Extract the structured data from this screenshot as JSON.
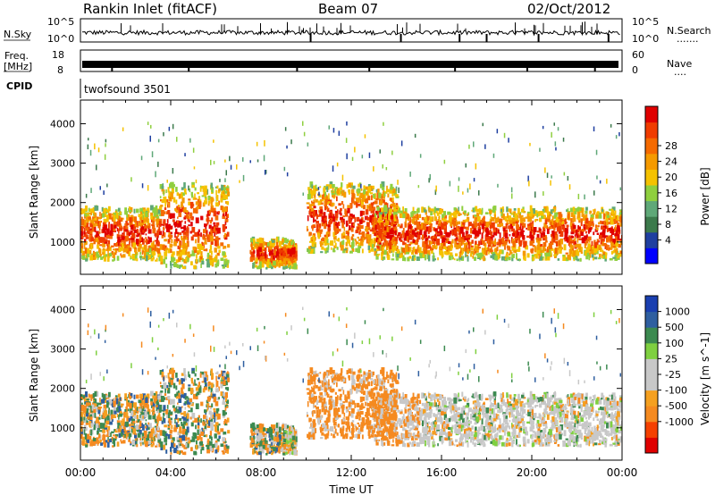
{
  "header": {
    "station": "Rankin Inlet (fitACF)",
    "beam": "Beam 07",
    "date": "02/Oct/2012"
  },
  "noise_panel": {
    "left_label": "N.Sky",
    "right_label": "N.Search",
    "right_label_dots": ".......",
    "left_ticks": [
      "10^5",
      "10^0"
    ],
    "right_ticks": [
      "10^5",
      "10^0"
    ]
  },
  "freq_panel": {
    "label_line1": "Freq.",
    "label_line2": "[MHz]",
    "left_ticks": [
      "18",
      "8"
    ],
    "right_label": "Nave",
    "right_label_dots": "....",
    "right_ticks": [
      "60",
      "0"
    ]
  },
  "cpid_panel": {
    "label": "CPID",
    "program": "twofsound 3501"
  },
  "colors": {
    "power": [
      "#0000ff",
      "#1f3fa0",
      "#3c7a4c",
      "#5fa878",
      "#8fcf3f",
      "#f5c200",
      "#f59a00",
      "#f56a00",
      "#f03c00",
      "#e00000"
    ],
    "velocity": [
      "#e00000",
      "#f54000",
      "#f58a20",
      "#f5a020",
      "#c8c8c8",
      "#c8c8c8",
      "#7fd040",
      "#3c8a50",
      "#2f5fa0",
      "#1a3fb0"
    ]
  },
  "chart_data": [
    {
      "type": "heatmap",
      "name": "power",
      "title": "",
      "xlabel": "",
      "ylabel": "Slant Range [km]",
      "xlim": [
        0,
        24
      ],
      "ylim": [
        180,
        4600
      ],
      "yticks": [
        "1000",
        "2000",
        "3000",
        "4000"
      ],
      "colorbar_label": "Power [dB]",
      "colorbar_ticks": [
        "4",
        "8",
        "12",
        "16",
        "20",
        "24",
        "28"
      ],
      "scatter_echo_bands_hours_km": [
        {
          "x": [
            0,
            3.5
          ],
          "y": [
            500,
            1800
          ]
        },
        {
          "x": [
            3.5,
            6.5
          ],
          "y": [
            300,
            2400
          ]
        },
        {
          "x": [
            7.5,
            9.5
          ],
          "y": [
            300,
            1000
          ]
        },
        {
          "x": [
            10,
            14
          ],
          "y": [
            700,
            2400
          ]
        },
        {
          "x": [
            13,
            24
          ],
          "y": [
            500,
            1800
          ]
        }
      ]
    },
    {
      "type": "heatmap",
      "name": "velocity",
      "title": "",
      "xlabel": "Time UT",
      "ylabel": "Slant Range [km]",
      "xlim": [
        0,
        24
      ],
      "ylim": [
        180,
        4600
      ],
      "xticks": [
        "00:00",
        "04:00",
        "08:00",
        "12:00",
        "16:00",
        "20:00",
        "00:00"
      ],
      "yticks": [
        "1000",
        "2000",
        "3000",
        "4000"
      ],
      "colorbar_label": "Velocity [m s^-1]",
      "colorbar_ticks": [
        "1000",
        "500",
        "100",
        "25",
        "-25",
        "-100",
        "-500",
        "-1000"
      ]
    }
  ]
}
